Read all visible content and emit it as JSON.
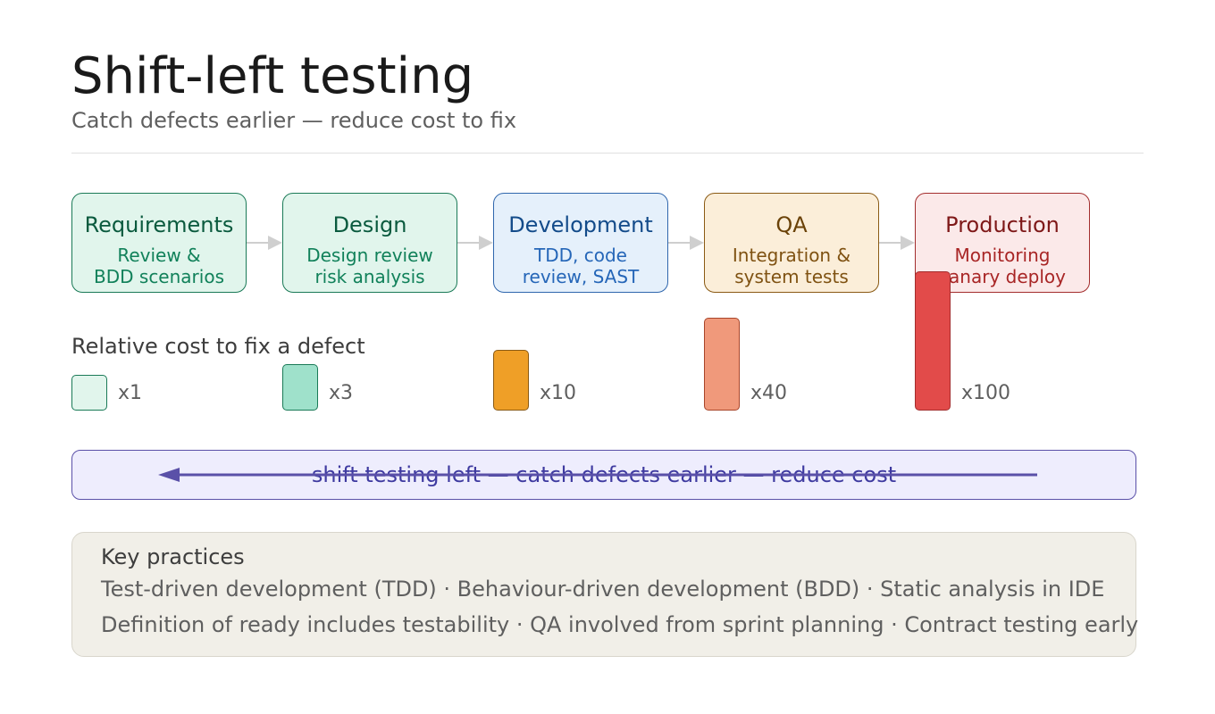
{
  "header": {
    "title": "Shift-left testing",
    "subtitle": "Catch defects earlier — reduce cost to fix"
  },
  "stages": [
    {
      "name": "Requirements",
      "desc": [
        "Review &",
        "BDD scenarios"
      ],
      "color": "#e1f5ec"
    },
    {
      "name": "Design",
      "desc": [
        "Design review",
        "risk analysis"
      ],
      "color": "#e1f5ec"
    },
    {
      "name": "Development",
      "desc": [
        "TDD, code",
        "review, SAST"
      ],
      "color": "#e5f0fb"
    },
    {
      "name": "QA",
      "desc": [
        "Integration &",
        "system tests"
      ],
      "color": "#fbeed9"
    },
    {
      "name": "Production",
      "desc": [
        "Monitoring",
        "canary deploy"
      ],
      "color": "#fbe9e9"
    }
  ],
  "cost": {
    "label": "Relative cost to fix a defect",
    "multipliers": [
      {
        "label": "x1",
        "value": 1,
        "color": "#e1f5ec"
      },
      {
        "label": "x3",
        "value": 3,
        "color": "#9fe1cb"
      },
      {
        "label": "x10",
        "value": 10,
        "color": "#ef9f27"
      },
      {
        "label": "x40",
        "value": 40,
        "color": "#f0997b"
      },
      {
        "label": "x100",
        "value": 100,
        "color": "#e24b4a"
      }
    ]
  },
  "banner": {
    "text": "shift testing left — catch defects earlier — reduce cost"
  },
  "practices": {
    "title": "Key practices",
    "lines": [
      "Test-driven development (TDD) · Behaviour-driven development (BDD) · Static analysis in IDE",
      "Definition of ready includes testability · QA involved from sprint planning · Contract testing early"
    ]
  }
}
